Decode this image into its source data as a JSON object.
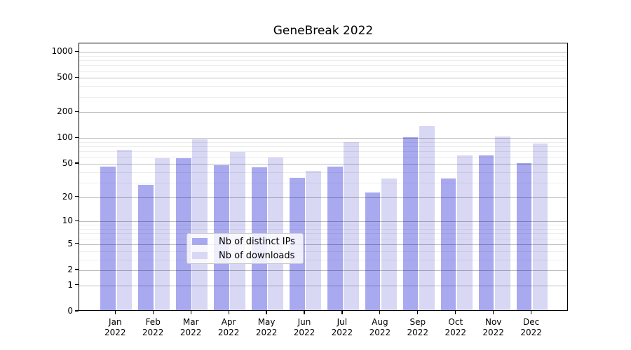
{
  "title": "GeneBreak 2022",
  "chart_data": {
    "type": "bar",
    "title": "GeneBreak 2022",
    "categories": [
      "Jan",
      "Feb",
      "Mar",
      "Apr",
      "May",
      "Jun",
      "Jul",
      "Aug",
      "Sep",
      "Oct",
      "Nov",
      "Dec"
    ],
    "year": "2022",
    "series": [
      {
        "name": "Nb of distinct IPs",
        "color": "#a9a9f0",
        "values": [
          45,
          27,
          56,
          46,
          44,
          33,
          45,
          22,
          98,
          32,
          60,
          49
        ]
      },
      {
        "name": "Nb of downloads",
        "color": "#d8d8f5",
        "values": [
          70,
          56,
          93,
          66,
          57,
          40,
          87,
          32,
          133,
          61,
          100,
          84
        ]
      }
    ],
    "yscale": "log1p",
    "ylim": [
      0,
      1256
    ],
    "yticks": [
      {
        "label": "1000",
        "value": 1000
      },
      {
        "label": "500",
        "value": 500
      },
      {
        "label": "200",
        "value": 200
      },
      {
        "label": "100",
        "value": 100
      },
      {
        "label": "50",
        "value": 50
      },
      {
        "label": "20",
        "value": 20
      },
      {
        "label": "10",
        "value": 10
      },
      {
        "label": "5",
        "value": 5
      },
      {
        "label": "2",
        "value": 2
      },
      {
        "label": "1",
        "value": 1
      },
      {
        "label": "0",
        "value": 0
      }
    ],
    "minor_gridlines": [
      3,
      4,
      6,
      7,
      8,
      9,
      30,
      40,
      60,
      70,
      80,
      90,
      300,
      400,
      600,
      700,
      800,
      900
    ],
    "grid": true,
    "grid_color": "#b0b0b0",
    "legend_position": "lower center"
  },
  "legend": {
    "items": [
      {
        "label": "Nb of distinct IPs"
      },
      {
        "label": "Nb of downloads"
      }
    ]
  }
}
